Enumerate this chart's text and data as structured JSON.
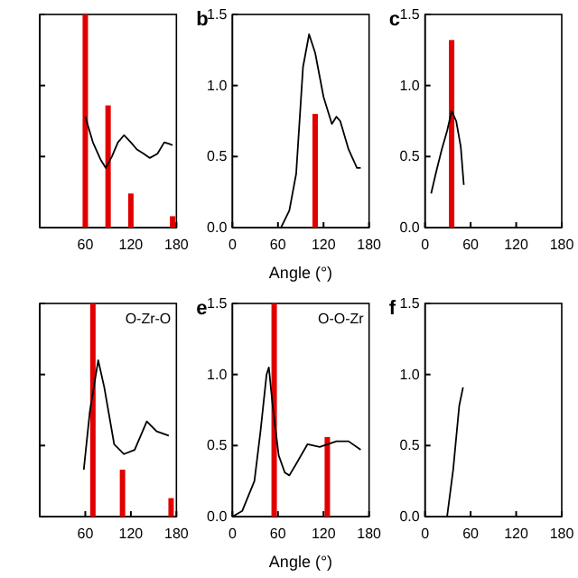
{
  "chart_data": [
    {
      "type": "line",
      "xlim": [
        0,
        180
      ],
      "xticks": [
        60,
        120,
        180
      ],
      "ylim": [
        0,
        1.5
      ],
      "yticks": [
        0,
        0.5,
        1.0,
        1.5
      ],
      "tick_labels": "x",
      "series": [
        {
          "color": "#000000",
          "x": [
            60,
            70,
            80,
            87,
            95,
            103,
            111,
            120,
            128,
            137,
            145,
            155,
            164,
            170,
            175
          ],
          "values": [
            0.78,
            0.6,
            0.48,
            0.42,
            0.5,
            0.6,
            0.65,
            0.6,
            0.55,
            0.52,
            0.49,
            0.52,
            0.6,
            0.59,
            0.58
          ]
        },
        {
          "type": "bar",
          "color": "#e00000",
          "x": [
            60,
            90,
            120,
            175
          ],
          "values": [
            1.5,
            0.86,
            0.24,
            0.08
          ]
        }
      ]
    },
    {
      "type": "line",
      "title": "b",
      "xlabel": "Angle (°)",
      "xlim": [
        0,
        180
      ],
      "xticks": [
        0,
        60,
        120,
        180
      ],
      "ylim": [
        0,
        1.5
      ],
      "yticks": [
        {
          "value": 0,
          "label": "0.0"
        },
        {
          "value": 0.5,
          "label": "0.5"
        },
        {
          "value": 1,
          "label": "1.0"
        },
        {
          "value": 1.5,
          "label": "1.5"
        }
      ],
      "series": [
        {
          "color": "#000000",
          "x": [
            64,
            75,
            84,
            93,
            101,
            109,
            120,
            131,
            137,
            142,
            153,
            164,
            169
          ],
          "values": [
            0,
            0.12,
            0.38,
            1.13,
            1.36,
            1.23,
            0.92,
            0.73,
            0.78,
            0.75,
            0.55,
            0.42,
            0.42
          ]
        },
        {
          "type": "bar",
          "color": "#e00000",
          "x": [
            109
          ],
          "values": [
            0.8
          ]
        }
      ]
    },
    {
      "type": "line",
      "title": "c",
      "xlim": [
        0,
        180
      ],
      "xticks": [
        0,
        60,
        120,
        180
      ],
      "ylim": [
        0,
        1.5
      ],
      "yticks": [
        {
          "value": 0,
          "label": "0.0"
        },
        {
          "value": 0.5,
          "label": "0.5"
        },
        {
          "value": 1,
          "label": "1.0"
        },
        {
          "value": 1.5,
          "label": "1.5"
        }
      ],
      "series": [
        {
          "color": "#000000",
          "x": [
            8,
            15,
            22,
            29,
            35,
            41,
            47,
            51
          ],
          "values": [
            0.24,
            0.4,
            0.55,
            0.68,
            0.82,
            0.75,
            0.57,
            0.3
          ]
        },
        {
          "type": "bar",
          "color": "#e00000",
          "x": [
            35
          ],
          "values": [
            1.32
          ]
        }
      ]
    },
    {
      "type": "line",
      "annotations": [
        "O-Zr-O"
      ],
      "xlim": [
        0,
        180
      ],
      "xticks": [
        60,
        120,
        180
      ],
      "ylim": [
        0,
        1.5
      ],
      "yticks": [
        0,
        0.5,
        1.0,
        1.5
      ],
      "tick_labels": "x",
      "series": [
        {
          "color": "#000000",
          "x": [
            58,
            66,
            77,
            85,
            98,
            111,
            125,
            141,
            154,
            170
          ],
          "values": [
            0.33,
            0.74,
            1.1,
            0.91,
            0.51,
            0.44,
            0.47,
            0.67,
            0.6,
            0.57
          ]
        },
        {
          "type": "bar",
          "color": "#e00000",
          "x": [
            70,
            109,
            173
          ],
          "values": [
            1.5,
            0.33,
            0.13
          ]
        }
      ]
    },
    {
      "type": "line",
      "title": "e",
      "xlabel": "Angle (°)",
      "annotations": [
        "O-O-Zr"
      ],
      "xlim": [
        0,
        180
      ],
      "xticks": [
        0,
        60,
        120,
        180
      ],
      "ylim": [
        0,
        1.5
      ],
      "yticks": [
        {
          "value": 0,
          "label": "0.0"
        },
        {
          "value": 0.5,
          "label": "0.5"
        },
        {
          "value": 1,
          "label": "1.0"
        },
        {
          "value": 1.5,
          "label": "1.5"
        }
      ],
      "series": [
        {
          "color": "#000000",
          "x": [
            0,
            13,
            29,
            37,
            45,
            48,
            53,
            61,
            69,
            75,
            85,
            99,
            115,
            137,
            153,
            169
          ],
          "values": [
            0,
            0.04,
            0.25,
            0.6,
            1.0,
            1.05,
            0.78,
            0.43,
            0.31,
            0.29,
            0.38,
            0.51,
            0.49,
            0.53,
            0.53,
            0.47
          ]
        },
        {
          "type": "bar",
          "color": "#e00000",
          "x": [
            55,
            125
          ],
          "values": [
            1.5,
            0.56
          ]
        }
      ]
    },
    {
      "type": "line",
      "title": "f",
      "xlim": [
        0,
        180
      ],
      "xticks": [
        0,
        60,
        120,
        180
      ],
      "ylim": [
        0,
        1.5
      ],
      "yticks": [
        {
          "value": 0,
          "label": "0.0"
        },
        {
          "value": 0.5,
          "label": "0.5"
        },
        {
          "value": 1,
          "label": "1.0"
        },
        {
          "value": 1.5,
          "label": "1.5"
        }
      ],
      "series": [
        {
          "color": "#000000",
          "x": [
            29,
            37,
            45,
            50
          ],
          "values": [
            0,
            0.33,
            0.78,
            0.91
          ]
        }
      ]
    }
  ]
}
